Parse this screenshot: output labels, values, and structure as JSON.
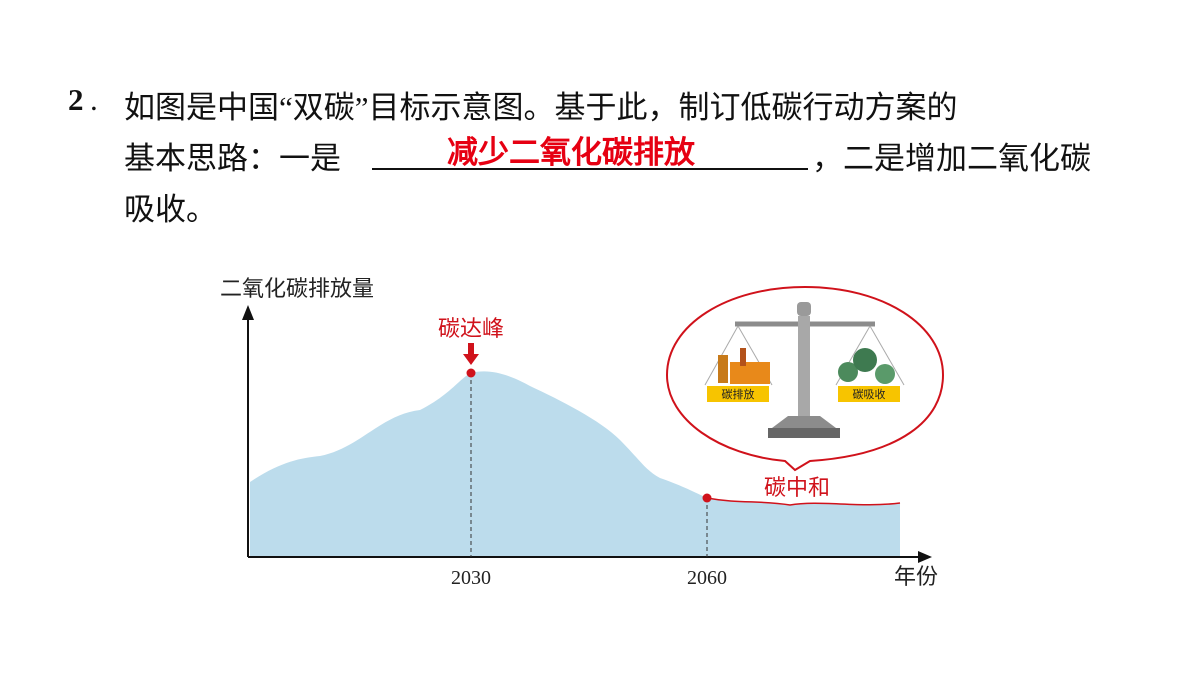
{
  "question": {
    "number": "2",
    "line1": "如图是中国“双碳”目标示意图。基于此，制订低碳行动方案的",
    "line2_before": "基本思路：一是",
    "answer": "减少二氧化碳排放",
    "line2_after": "，二是增加二氧化碳",
    "line3": "吸收。"
  },
  "figure": {
    "y_axis_label": "二氧化碳排放量",
    "x_axis_label": "年份",
    "peak_label": "碳达峰",
    "neutral_label": "碳中和",
    "x_labels": [
      "2030",
      "2060"
    ],
    "emission_label": "碳排放",
    "absorption_label": "碳吸收"
  }
}
